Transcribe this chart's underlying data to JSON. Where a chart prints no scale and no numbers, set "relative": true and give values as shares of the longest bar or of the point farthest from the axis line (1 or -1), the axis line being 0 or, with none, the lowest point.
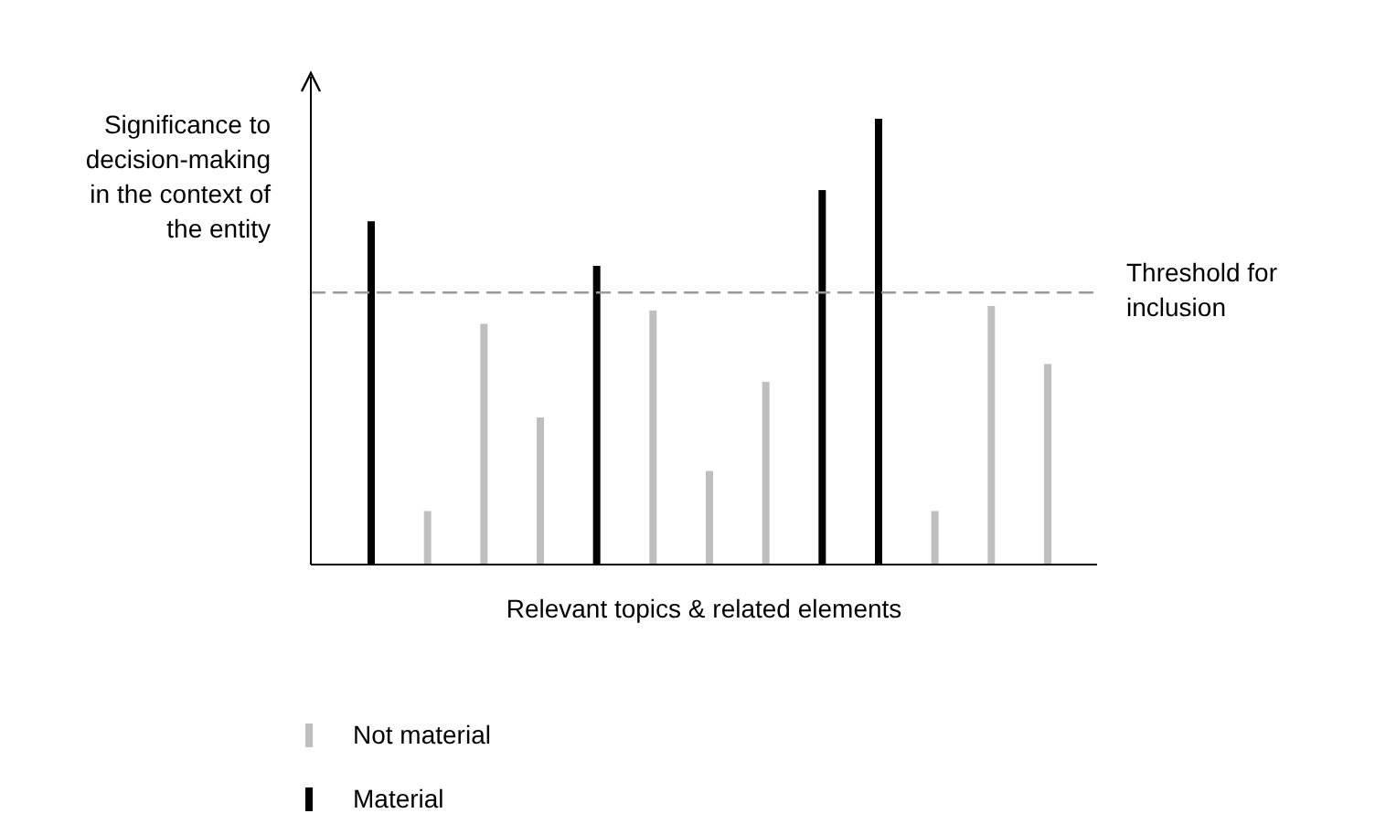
{
  "chart_data": {
    "type": "bar",
    "relative": true,
    "ylabel": "Significance to decision-making in the context of the entity",
    "xlabel": "Relevant topics & related elements",
    "categories": [
      null,
      null,
      null,
      null,
      null,
      null,
      null,
      null,
      null,
      null,
      null,
      null,
      null
    ],
    "series": [
      {
        "name": "Not material",
        "color": "#bfbfbf",
        "values": [
          null,
          0.12,
          0.54,
          0.33,
          null,
          0.57,
          0.21,
          0.41,
          null,
          null,
          0.12,
          0.58,
          0.45
        ]
      },
      {
        "name": "Material",
        "color": "#000000",
        "values": [
          0.77,
          null,
          null,
          null,
          0.67,
          null,
          null,
          null,
          0.84,
          1,
          null,
          null,
          null
        ]
      }
    ],
    "ref_lines": [
      {
        "axis": "y",
        "value": 0.61,
        "label": "Threshold for inclusion",
        "color": "#999999",
        "line_style": "dashed"
      }
    ],
    "legend": "bottom left",
    "stacked": true
  }
}
